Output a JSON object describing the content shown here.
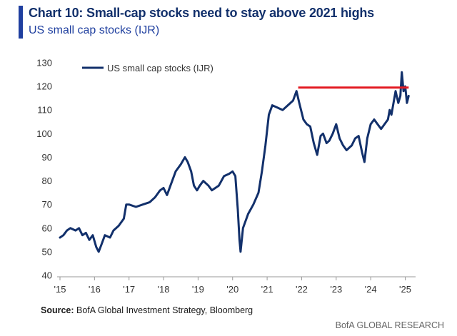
{
  "chart_data": {
    "type": "line",
    "title": "Chart 10: Small-cap stocks need to stay above 2021 highs",
    "subtitle": "US small cap stocks (IJR)",
    "xlabel": "",
    "ylabel": "",
    "ylim": [
      40,
      130
    ],
    "yticks": [
      40,
      50,
      60,
      70,
      80,
      90,
      100,
      110,
      120,
      130
    ],
    "xlim": [
      2015,
      2025.3
    ],
    "xticks": [
      {
        "value": 2015,
        "label": "'15"
      },
      {
        "value": 2016,
        "label": "'16"
      },
      {
        "value": 2017,
        "label": "'17"
      },
      {
        "value": 2018,
        "label": "'18"
      },
      {
        "value": 2019,
        "label": "'19"
      },
      {
        "value": 2020,
        "label": "'20"
      },
      {
        "value": 2021,
        "label": "'21"
      },
      {
        "value": 2022,
        "label": "'22"
      },
      {
        "value": 2023,
        "label": "'23"
      },
      {
        "value": 2024,
        "label": "'24"
      },
      {
        "value": 2025,
        "label": "'25"
      }
    ],
    "legend": {
      "label": "US small cap stocks (IJR)",
      "placement": "top-left"
    },
    "grid": false,
    "series": [
      {
        "name": "US small cap stocks (IJR)",
        "color": "#12306b",
        "x": [
          2015.0,
          2015.1,
          2015.2,
          2015.3,
          2015.45,
          2015.55,
          2015.65,
          2015.75,
          2015.85,
          2015.95,
          2016.05,
          2016.12,
          2016.2,
          2016.3,
          2016.45,
          2016.55,
          2016.7,
          2016.85,
          2016.92,
          2017.0,
          2017.2,
          2017.4,
          2017.6,
          2017.75,
          2017.9,
          2018.0,
          2018.1,
          2018.2,
          2018.35,
          2018.5,
          2018.62,
          2018.7,
          2018.8,
          2018.88,
          2018.97,
          2019.05,
          2019.15,
          2019.3,
          2019.4,
          2019.6,
          2019.75,
          2019.9,
          2020.0,
          2020.08,
          2020.15,
          2020.2,
          2020.23,
          2020.3,
          2020.45,
          2020.6,
          2020.75,
          2020.85,
          2020.95,
          2021.05,
          2021.15,
          2021.3,
          2021.45,
          2021.6,
          2021.75,
          2021.85,
          2021.93,
          2022.05,
          2022.15,
          2022.25,
          2022.35,
          2022.45,
          2022.55,
          2022.62,
          2022.72,
          2022.8,
          2022.9,
          2023.0,
          2023.1,
          2023.2,
          2023.3,
          2023.45,
          2023.55,
          2023.65,
          2023.75,
          2023.82,
          2023.9,
          2024.0,
          2024.1,
          2024.2,
          2024.3,
          2024.4,
          2024.5,
          2024.55,
          2024.6,
          2024.66,
          2024.72,
          2024.8,
          2024.86,
          2024.9,
          2024.95,
          2025.0,
          2025.05,
          2025.1
        ],
        "y": [
          56,
          57,
          59,
          60,
          59,
          60,
          57,
          58,
          55,
          57,
          52,
          50,
          53,
          57,
          56,
          59,
          61,
          64,
          70,
          70,
          69,
          70,
          71,
          73,
          76,
          77,
          74,
          78,
          84,
          87,
          90,
          88,
          84,
          78,
          76,
          78,
          80,
          78,
          76,
          78,
          82,
          83,
          84,
          82,
          68,
          55,
          50,
          60,
          66,
          70,
          75,
          84,
          95,
          108,
          112,
          111,
          110,
          112,
          114,
          118,
          113,
          106,
          104,
          103,
          96,
          91,
          99,
          100,
          96,
          97,
          100,
          104,
          98,
          95,
          93,
          95,
          98,
          99,
          92,
          88,
          98,
          104,
          106,
          104,
          102,
          104,
          106,
          110,
          108,
          113,
          118,
          113,
          116,
          126,
          118,
          120,
          113,
          116
        ]
      }
    ],
    "annotations": [
      {
        "type": "hline",
        "y": 119.5,
        "x_start": 2021.9,
        "x_end": 2025.1,
        "color": "#e31b23"
      }
    ]
  },
  "footer": {
    "source_label": "Source:",
    "source_text": " BofA Global Investment Strategy, Bloomberg",
    "brand": "BofA GLOBAL RESEARCH"
  }
}
